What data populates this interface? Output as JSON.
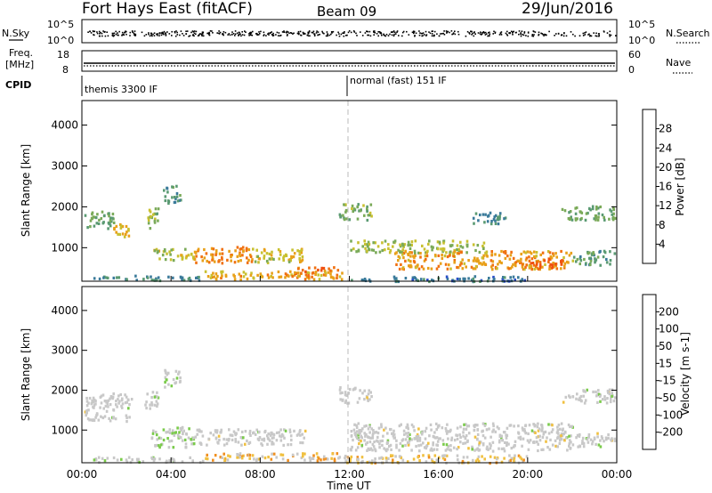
{
  "header": {
    "title": "Fort Hays East (fitACF)",
    "beam": "Beam 09",
    "date": "29/Jun/2016"
  },
  "strips": {
    "nsky_label": "N.Sky",
    "nsky_ticks": [
      "10^5",
      "10^0"
    ],
    "nsearch_label": "N.Search",
    "nsearch_ticks": [
      "10^5",
      "10^0"
    ],
    "freq_label": "Freq.",
    "freq_unit": "[MHz]",
    "freq_ticks": [
      "18",
      "8"
    ],
    "nave_label": "Nave",
    "nave_ticks": [
      "60",
      "0"
    ],
    "cpid_label": "CPID",
    "cpid_segments": [
      "themis 3300 IF",
      "normal (fast) 151 IF"
    ]
  },
  "axes": {
    "ylabel": "Slant Range [km]",
    "yticks": [
      "1000",
      "2000",
      "3000",
      "4000"
    ],
    "xlabel": "Time UT",
    "xticks": [
      "00:00",
      "04:00",
      "08:00",
      "12:00",
      "16:00",
      "20:00",
      "00:00"
    ]
  },
  "colorbars": {
    "power": {
      "label": "Power [dB]",
      "ticks": [
        "4",
        "8",
        "12",
        "16",
        "20",
        "24",
        "28"
      ],
      "colors": [
        "#0a10e6",
        "#2a4fc8",
        "#3a7a9a",
        "#5a9a72",
        "#7aaa58",
        "#c8c030",
        "#e8a018",
        "#f07010",
        "#f05010",
        "#e82010"
      ]
    },
    "velocity": {
      "label": "Velocity [m s-1]",
      "ticks": [
        "200",
        "100",
        "50",
        "15",
        "-15",
        "-50",
        "-100",
        "-200"
      ],
      "colors": [
        "#1a2a9a",
        "#3060c0",
        "#3a9a9a",
        "#2a8a3a",
        "#7acb4a",
        "#c8c8c8",
        "#c8c8c8",
        "#f0c040",
        "#f09020",
        "#f06010",
        "#e83010",
        "#e01010"
      ]
    }
  },
  "chart_data": [
    {
      "type": "heatmap",
      "title": "Power",
      "xlabel": "Time UT",
      "ylabel": "Slant Range [km]",
      "xlim": [
        0,
        24
      ],
      "ylim": [
        180,
        4600
      ],
      "colorbar_label": "Power [dB]",
      "clim": [
        0,
        30
      ],
      "regions": [
        {
          "t0": 0.1,
          "t1": 1.4,
          "r0": 1500,
          "r1": 1950,
          "value": 12
        },
        {
          "t0": 1.4,
          "t1": 2.2,
          "r0": 1250,
          "r1": 1600,
          "value": 18
        },
        {
          "t0": 2.8,
          "t1": 3.4,
          "r0": 1500,
          "r1": 2000,
          "value": 14
        },
        {
          "t0": 3.6,
          "t1": 4.4,
          "r0": 2100,
          "r1": 2550,
          "value": 10
        },
        {
          "t0": 3.2,
          "t1": 5.0,
          "r0": 700,
          "r1": 1000,
          "value": 16
        },
        {
          "t0": 5.0,
          "t1": 7.6,
          "r0": 650,
          "r1": 1050,
          "value": 21
        },
        {
          "t0": 7.6,
          "t1": 10.0,
          "r0": 650,
          "r1": 1000,
          "value": 17
        },
        {
          "t0": 5.5,
          "t1": 11.8,
          "r0": 250,
          "r1": 450,
          "value": 19
        },
        {
          "t0": 0.5,
          "t1": 5.5,
          "r0": 220,
          "r1": 350,
          "value": 9
        },
        {
          "t0": 9.5,
          "t1": 11.5,
          "r0": 300,
          "r1": 550,
          "value": 22
        },
        {
          "t0": 11.5,
          "t1": 13.0,
          "r0": 1700,
          "r1": 2100,
          "value": 13
        },
        {
          "t0": 12.0,
          "t1": 18.0,
          "r0": 900,
          "r1": 1200,
          "value": 15
        },
        {
          "t0": 14.0,
          "t1": 22.0,
          "r0": 500,
          "r1": 950,
          "value": 20
        },
        {
          "t0": 20.0,
          "t1": 21.5,
          "r0": 500,
          "r1": 750,
          "value": 24
        },
        {
          "t0": 11.8,
          "t1": 20.0,
          "r0": 200,
          "r1": 330,
          "value": 8
        },
        {
          "t0": 21.5,
          "t1": 23.9,
          "r0": 1700,
          "r1": 2050,
          "value": 12
        },
        {
          "t0": 22.0,
          "t1": 23.9,
          "r0": 600,
          "r1": 950,
          "value": 11
        },
        {
          "t0": 17.5,
          "t1": 19.0,
          "r0": 1600,
          "r1": 1900,
          "value": 9
        }
      ]
    },
    {
      "type": "heatmap",
      "title": "Velocity",
      "xlabel": "Time UT",
      "ylabel": "Slant Range [km]",
      "xlim": [
        0,
        24
      ],
      "ylim": [
        180,
        4600
      ],
      "colorbar_label": "Velocity [m s-1]",
      "clim": [
        -250,
        250
      ],
      "regions": [
        {
          "t0": 0.1,
          "t1": 2.2,
          "r0": 1250,
          "r1": 1950,
          "value": 0
        },
        {
          "t0": 2.8,
          "t1": 3.4,
          "r0": 1500,
          "r1": 2000,
          "value": 5
        },
        {
          "t0": 3.6,
          "t1": 4.4,
          "r0": 2100,
          "r1": 2550,
          "value": 10
        },
        {
          "t0": 3.0,
          "t1": 5.0,
          "r0": 600,
          "r1": 1100,
          "value": 30
        },
        {
          "t0": 5.0,
          "t1": 10.0,
          "r0": 650,
          "r1": 1050,
          "value": 0
        },
        {
          "t0": 5.5,
          "t1": 11.8,
          "r0": 250,
          "r1": 450,
          "value": -60
        },
        {
          "t0": 0.5,
          "t1": 5.5,
          "r0": 220,
          "r1": 350,
          "value": 20
        },
        {
          "t0": 11.5,
          "t1": 13.0,
          "r0": 1700,
          "r1": 2100,
          "value": 0
        },
        {
          "t0": 12.0,
          "t1": 22.0,
          "r0": 500,
          "r1": 1200,
          "value": 0
        },
        {
          "t0": 11.8,
          "t1": 20.0,
          "r0": 200,
          "r1": 400,
          "value": -55
        },
        {
          "t0": 21.5,
          "t1": 23.9,
          "r0": 1700,
          "r1": 2050,
          "value": 0
        },
        {
          "t0": 22.0,
          "t1": 23.9,
          "r0": 600,
          "r1": 950,
          "value": 0
        }
      ]
    }
  ]
}
